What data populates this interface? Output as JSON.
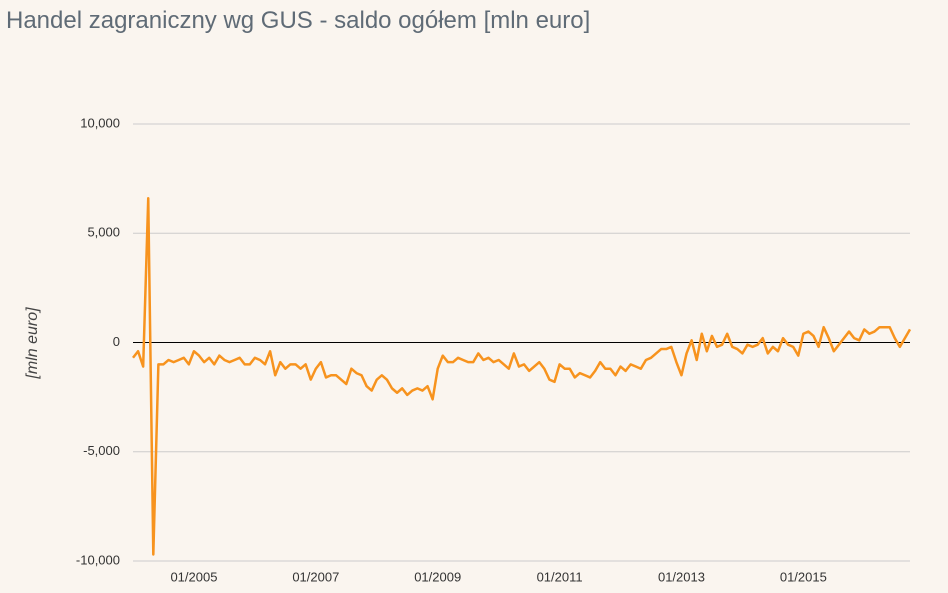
{
  "chart_data": {
    "type": "line",
    "title": "Handel zagraniczny wg GUS - saldo ogółem [mln euro]",
    "y_label": "[mln euro]",
    "color": "#f7931e",
    "grid": true,
    "ylim": [
      -10000,
      10000
    ],
    "yticks": [
      {
        "value": -10000,
        "label": "-10,000"
      },
      {
        "value": -5000,
        "label": "-5,000"
      },
      0,
      {
        "value": 5000,
        "label": "5,000"
      },
      {
        "value": 10000,
        "label": "10,000"
      }
    ],
    "categories": [
      null,
      null,
      null,
      null,
      null,
      null,
      null,
      null,
      null,
      null,
      null,
      null,
      "01/2005",
      null,
      null,
      null,
      null,
      null,
      null,
      null,
      null,
      null,
      null,
      null,
      null,
      null,
      null,
      null,
      null,
      null,
      null,
      null,
      null,
      null,
      null,
      null,
      "01/2007",
      null,
      null,
      null,
      null,
      null,
      null,
      null,
      null,
      null,
      null,
      null,
      null,
      null,
      null,
      null,
      null,
      null,
      null,
      null,
      null,
      null,
      null,
      null,
      "01/2009",
      null,
      null,
      null,
      null,
      null,
      null,
      null,
      null,
      null,
      null,
      null,
      null,
      null,
      null,
      null,
      null,
      null,
      null,
      null,
      null,
      null,
      null,
      null,
      "01/2011",
      null,
      null,
      null,
      null,
      null,
      null,
      null,
      null,
      null,
      null,
      null,
      null,
      null,
      null,
      null,
      null,
      null,
      null,
      null,
      null,
      null,
      null,
      null,
      "01/2013",
      null,
      null,
      null,
      null,
      null,
      null,
      null,
      null,
      null,
      null,
      null,
      null,
      null,
      null,
      null,
      null,
      null,
      null,
      null,
      null,
      null,
      null,
      null,
      "01/2015",
      null,
      null,
      null,
      null,
      null,
      null,
      null,
      null,
      null,
      null,
      null,
      null,
      null,
      null,
      null,
      null,
      null,
      null,
      null,
      null,
      null
    ],
    "values": [
      -700,
      -400,
      -1100,
      6600,
      -9700,
      -1000,
      -1000,
      -800,
      -900,
      -800,
      -700,
      -1000,
      -400,
      -600,
      -900,
      -700,
      -1000,
      -600,
      -800,
      -900,
      -800,
      -700,
      -1000,
      -1000,
      -700,
      -800,
      -1000,
      -400,
      -1500,
      -900,
      -1200,
      -1000,
      -1000,
      -1200,
      -1000,
      -1700,
      -1200,
      -900,
      -1600,
      -1500,
      -1500,
      -1700,
      -1900,
      -1200,
      -1400,
      -1500,
      -2000,
      -2200,
      -1700,
      -1500,
      -1700,
      -2100,
      -2300,
      -2100,
      -2400,
      -2200,
      -2100,
      -2200,
      -2000,
      -2600,
      -1200,
      -600,
      -900,
      -900,
      -700,
      -800,
      -900,
      -900,
      -500,
      -800,
      -700,
      -900,
      -800,
      -1000,
      -1200,
      -500,
      -1100,
      -1000,
      -1300,
      -1100,
      -900,
      -1200,
      -1700,
      -1800,
      -1000,
      -1200,
      -1200,
      -1600,
      -1400,
      -1500,
      -1600,
      -1300,
      -900,
      -1200,
      -1200,
      -1500,
      -1100,
      -1300,
      -1000,
      -1100,
      -1200,
      -800,
      -700,
      -500,
      -300,
      -300,
      -200,
      -900,
      -1500,
      -500,
      100,
      -800,
      400,
      -400,
      300,
      -200,
      -100,
      400,
      -200,
      -300,
      -500,
      -100,
      -200,
      -100,
      200,
      -500,
      -200,
      -400,
      200,
      -100,
      -200,
      -600,
      400,
      500,
      300,
      -200,
      700,
      200,
      -400,
      -100,
      200,
      500,
      200,
      100,
      600,
      400,
      500,
      700,
      700,
      700,
      200,
      -200,
      200,
      600
    ]
  }
}
